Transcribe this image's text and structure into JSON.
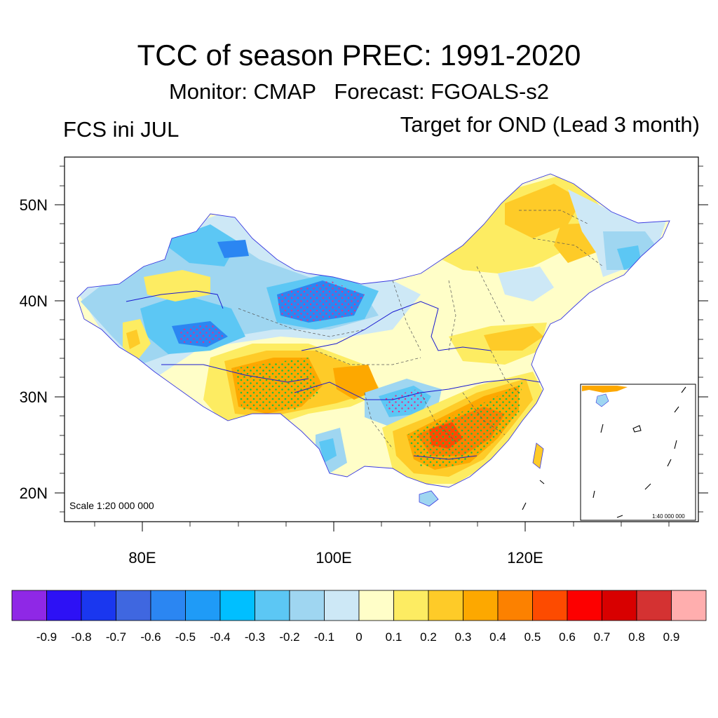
{
  "title": "TCC of season PREC: 1991-2020",
  "subtitle": "Monitor: CMAP   Forecast: FGOALS-s2",
  "left_label": "FCS ini JUL",
  "right_label": "Target for OND (Lead 3 month)",
  "map": {
    "scale_label": "Scale 1:20 000 000",
    "inset_scale_label": "1:40 000 000",
    "lat_ticks": [
      "50N",
      "40N",
      "30N",
      "20N"
    ],
    "lon_ticks": [
      "80E",
      "100E",
      "120E"
    ],
    "stipple_meaning": "significant"
  },
  "colorbar": {
    "colors": [
      "#8f28e6",
      "#2d11f5",
      "#1a37ef",
      "#3f67e0",
      "#2b86f2",
      "#1f9bf7",
      "#00bfff",
      "#5cc7f4",
      "#9fd6f1",
      "#cde8f6",
      "#fffec8",
      "#fdec62",
      "#fecb28",
      "#fda800",
      "#fc8100",
      "#fd4b00",
      "#fd0000",
      "#d80000",
      "#d43232",
      "#ffaeae"
    ],
    "labels": [
      "-0.9",
      "-0.8",
      "-0.7",
      "-0.6",
      "-0.5",
      "-0.4",
      "-0.3",
      "-0.2",
      "-0.1",
      "0",
      "0.1",
      "0.2",
      "0.3",
      "0.4",
      "0.5",
      "0.6",
      "0.7",
      "0.8",
      "0.9"
    ]
  }
}
